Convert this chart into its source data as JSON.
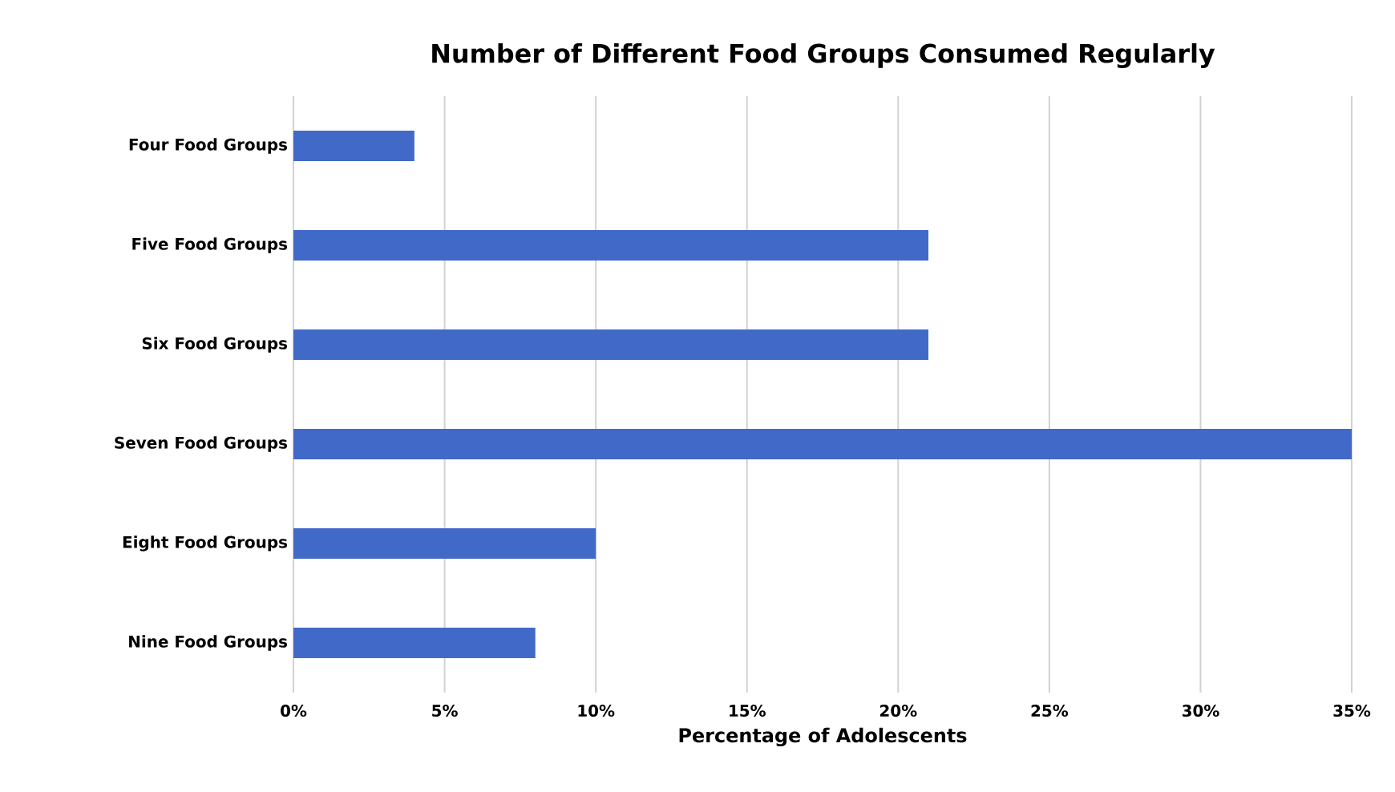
{
  "chart_data": {
    "type": "bar",
    "orientation": "horizontal",
    "title": "Number of Different Food Groups Consumed Regularly",
    "xlabel": "Percentage of Adolescents",
    "categories": [
      "Four Food Groups",
      "Five Food Groups",
      "Six Food Groups",
      "Seven Food Groups",
      "Eight Food Groups",
      "Nine Food Groups"
    ],
    "values": [
      4,
      21,
      21,
      35,
      10,
      8
    ],
    "color": "#4169c8",
    "xlim": [
      0,
      35
    ],
    "xticks": [
      {
        "value": 0,
        "label": "0%"
      },
      {
        "value": 5,
        "label": "5%"
      },
      {
        "value": 10,
        "label": "10%"
      },
      {
        "value": 15,
        "label": "15%"
      },
      {
        "value": 20,
        "label": "20%"
      },
      {
        "value": 25,
        "label": "25%"
      },
      {
        "value": 30,
        "label": "30%"
      },
      {
        "value": 35,
        "label": "35%"
      }
    ],
    "grid": "x"
  }
}
